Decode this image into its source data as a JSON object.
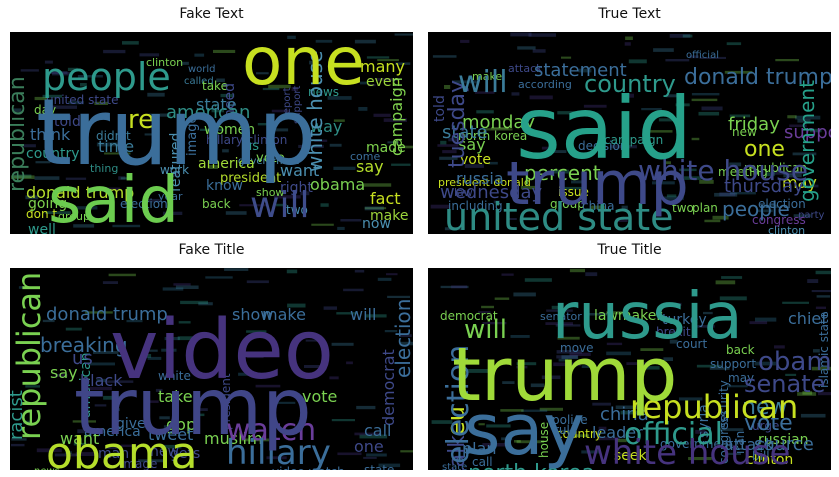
{
  "panels": [
    {
      "title": "Fake Text",
      "words": [
        {
          "text": "trump",
          "color": "#3b6e9a"
        },
        {
          "text": "said",
          "color": "#6ccc4f"
        },
        {
          "text": "one",
          "color": "#c7e020"
        },
        {
          "text": "people",
          "color": "#2e9a8c"
        },
        {
          "text": "will",
          "color": "#3f4d8c"
        },
        {
          "text": "republican",
          "color": "#3a7d5a"
        },
        {
          "text": "white house",
          "color": "#4b8fb0"
        },
        {
          "text": "donald trump",
          "color": "#b5de2b"
        },
        {
          "text": "campaign",
          "color": "#7fd34e"
        },
        {
          "text": "president",
          "color": "#b5de2b"
        },
        {
          "text": "hillary clinton",
          "color": "#3e4989"
        },
        {
          "text": "american",
          "color": "#2e8c84"
        },
        {
          "text": "state",
          "color": "#3b7c9a"
        },
        {
          "text": "women",
          "color": "#7ad151"
        },
        {
          "text": "america",
          "color": "#a0da39"
        },
        {
          "text": "many",
          "color": "#c7e020"
        },
        {
          "text": "even",
          "color": "#9cd53b"
        },
        {
          "text": "made",
          "color": "#7fd34e"
        },
        {
          "text": "now",
          "color": "#4b8fb0"
        },
        {
          "text": "fact",
          "color": "#c7e020"
        },
        {
          "text": "make",
          "color": "#9cd53b"
        },
        {
          "text": "obama",
          "color": "#7ad151"
        },
        {
          "text": "say",
          "color": "#b5de2b"
        },
        {
          "text": "want",
          "color": "#4b8fb0"
        },
        {
          "text": "right",
          "color": "#3e4989"
        },
        {
          "text": "know",
          "color": "#3b6e9a"
        },
        {
          "text": "image",
          "color": "#3b6e9a"
        },
        {
          "text": "featured",
          "color": "#4b8fb0"
        },
        {
          "text": "time",
          "color": "#3b7c9a"
        },
        {
          "text": "think",
          "color": "#3b6e9a"
        },
        {
          "text": "country",
          "color": "#2e9a8c"
        },
        {
          "text": "going",
          "color": "#7fd34e"
        },
        {
          "text": "don t",
          "color": "#c7e020"
        },
        {
          "text": "well",
          "color": "#2e9a8c"
        },
        {
          "text": "re",
          "color": "#c7e020"
        },
        {
          "text": "need",
          "color": "#3e4989"
        },
        {
          "text": "told",
          "color": "#3e4989"
        },
        {
          "text": "us",
          "color": "#2e9a8c"
        },
        {
          "text": "vote",
          "color": "#7ad151"
        },
        {
          "text": "way",
          "color": "#2e8c84"
        },
        {
          "text": "clinton",
          "color": "#7ad151"
        },
        {
          "text": "election",
          "color": "#3b6e9a"
        },
        {
          "text": "two",
          "color": "#4b8fb0"
        },
        {
          "text": "show",
          "color": "#7ad151"
        },
        {
          "text": "called",
          "color": "#3b7c9a"
        },
        {
          "text": "world",
          "color": "#3b6e9a"
        },
        {
          "text": "take",
          "color": "#7ad151"
        },
        {
          "text": "day",
          "color": "#7ad151"
        },
        {
          "text": "work",
          "color": "#4b8fb0"
        },
        {
          "text": "news",
          "color": "#2e9a8c"
        },
        {
          "text": "year",
          "color": "#3b6e9a"
        },
        {
          "text": "back",
          "color": "#7ad151"
        },
        {
          "text": "group",
          "color": "#7ad151"
        },
        {
          "text": "government",
          "color": "#4b8fb0"
        },
        {
          "text": "united state",
          "color": "#3e4989"
        },
        {
          "text": "come",
          "color": "#3b6e9a"
        },
        {
          "text": "thing",
          "color": "#2e8c84"
        },
        {
          "text": "didn t",
          "color": "#3b7c9a"
        },
        {
          "text": "support",
          "color": "#3e4989"
        },
        {
          "text": "report",
          "color": "#3e4989"
        }
      ]
    },
    {
      "title": "True Text",
      "words": [
        {
          "text": "said",
          "color": "#26a18a"
        },
        {
          "text": "trump",
          "color": "#3e4989"
        },
        {
          "text": "united state",
          "color": "#2e8c84"
        },
        {
          "text": "donald trump",
          "color": "#3b6e9a"
        },
        {
          "text": "will",
          "color": "#3b7c9a"
        },
        {
          "text": "country",
          "color": "#2e9a8c"
        },
        {
          "text": "white house",
          "color": "#3e4989"
        },
        {
          "text": "percent",
          "color": "#7ad151"
        },
        {
          "text": "government",
          "color": "#26a18a"
        },
        {
          "text": "tuesday",
          "color": "#3e4989"
        },
        {
          "text": "statement",
          "color": "#3b6e9a"
        },
        {
          "text": "one",
          "color": "#c7e020"
        },
        {
          "text": "people",
          "color": "#3b6e9a"
        },
        {
          "text": "wednesday",
          "color": "#3e4989"
        },
        {
          "text": "thursday",
          "color": "#3e4989"
        },
        {
          "text": "friday",
          "color": "#7ad151"
        },
        {
          "text": "monday",
          "color": "#7ad151"
        },
        {
          "text": "russia",
          "color": "#3b6e9a"
        },
        {
          "text": "state",
          "color": "#3b7c9a"
        },
        {
          "text": "support",
          "color": "#6a3d9a"
        },
        {
          "text": "say",
          "color": "#7ad151"
        },
        {
          "text": "vote",
          "color": "#c7e020"
        },
        {
          "text": "north korea",
          "color": "#7ad151"
        },
        {
          "text": "told",
          "color": "#3e4989"
        },
        {
          "text": "may",
          "color": "#c7e020"
        },
        {
          "text": "new",
          "color": "#7ad151"
        },
        {
          "text": "republican",
          "color": "#7ad151"
        },
        {
          "text": "election",
          "color": "#3b6e9a"
        },
        {
          "text": "law",
          "color": "#3e4989"
        },
        {
          "text": "meeting",
          "color": "#7ad151"
        },
        {
          "text": "issue",
          "color": "#c7e020"
        },
        {
          "text": "group",
          "color": "#7ad151"
        },
        {
          "text": "congress",
          "color": "#6a3d9a"
        },
        {
          "text": "clinton",
          "color": "#4b8fb0"
        },
        {
          "text": "including",
          "color": "#3b6e9a"
        },
        {
          "text": "china",
          "color": "#3b6e9a"
        },
        {
          "text": "make",
          "color": "#7ad151"
        },
        {
          "text": "according",
          "color": "#3b6e9a"
        },
        {
          "text": "attack",
          "color": "#3e4989"
        },
        {
          "text": "party",
          "color": "#3e4989"
        },
        {
          "text": "decision",
          "color": "#3b6e9a"
        },
        {
          "text": "president donald",
          "color": "#c7e020"
        },
        {
          "text": "campaign",
          "color": "#2e9a8c"
        },
        {
          "text": "official",
          "color": "#3b6e9a"
        },
        {
          "text": "two",
          "color": "#7ad151"
        },
        {
          "text": "plan",
          "color": "#7ad151"
        }
      ]
    },
    {
      "title": "Fake Title",
      "words": [
        {
          "text": "video",
          "color": "#46337e"
        },
        {
          "text": "trump",
          "color": "#404688"
        },
        {
          "text": "obama",
          "color": "#b5de2b"
        },
        {
          "text": "hillary",
          "color": "#3b6e9a"
        },
        {
          "text": "watch",
          "color": "#6a3d9a"
        },
        {
          "text": "republican",
          "color": "#7ad151"
        },
        {
          "text": "donald trump",
          "color": "#3b6e9a"
        },
        {
          "text": "show",
          "color": "#3b6e9a"
        },
        {
          "text": "make",
          "color": "#3b6e9a"
        },
        {
          "text": "will",
          "color": "#3b6e9a"
        },
        {
          "text": "election",
          "color": "#3b6e9a"
        },
        {
          "text": "democrat",
          "color": "#3e4989"
        },
        {
          "text": "racist",
          "color": "#2e9a8c"
        },
        {
          "text": "breaking",
          "color": "#3b6e9a"
        },
        {
          "text": "say",
          "color": "#7ad151"
        },
        {
          "text": "us",
          "color": "#3e4989"
        },
        {
          "text": "black",
          "color": "#3e4989"
        },
        {
          "text": "white",
          "color": "#3b6e9a"
        },
        {
          "text": "take",
          "color": "#7ad151"
        },
        {
          "text": "gop",
          "color": "#7ad151"
        },
        {
          "text": "vote",
          "color": "#7ad151"
        },
        {
          "text": "american",
          "color": "#2e9a8c"
        },
        {
          "text": "america",
          "color": "#3b6e9a"
        },
        {
          "text": "tweet",
          "color": "#3b6e9a"
        },
        {
          "text": "muslim",
          "color": "#7ad151"
        },
        {
          "text": "gets",
          "color": "#3e4989"
        },
        {
          "text": "new",
          "color": "#3e4989"
        },
        {
          "text": "call",
          "color": "#3b6e9a"
        },
        {
          "text": "one",
          "color": "#3e4989"
        },
        {
          "text": "give",
          "color": "#3b6e9a"
        },
        {
          "text": "want",
          "color": "#7ad151"
        },
        {
          "text": "man",
          "color": "#3e4989"
        },
        {
          "text": "image",
          "color": "#3e4989"
        },
        {
          "text": "president",
          "color": "#3e4989"
        },
        {
          "text": "video watch",
          "color": "#3b6e9a"
        },
        {
          "text": "state",
          "color": "#3b6e9a"
        },
        {
          "text": "news",
          "color": "#7ad151"
        },
        {
          "text": "fox",
          "color": "#3e4989"
        }
      ]
    },
    {
      "title": "True Title",
      "words": [
        {
          "text": "trump",
          "color": "#a0da39"
        },
        {
          "text": "say",
          "color": "#3b6e9a"
        },
        {
          "text": "russia",
          "color": "#2e9a8c"
        },
        {
          "text": "white house",
          "color": "#46337e"
        },
        {
          "text": "republican",
          "color": "#c7e020"
        },
        {
          "text": "obama",
          "color": "#3e4989"
        },
        {
          "text": "senate",
          "color": "#3e4989"
        },
        {
          "text": "official",
          "color": "#2e9a8c"
        },
        {
          "text": "election",
          "color": "#3b6e9a"
        },
        {
          "text": "north korea",
          "color": "#2e9a8c"
        },
        {
          "text": "will",
          "color": "#7ad151"
        },
        {
          "text": "new",
          "color": "#3b7c9a"
        },
        {
          "text": "vote",
          "color": "#3b6e9a"
        },
        {
          "text": "eu",
          "color": "#c7e020"
        },
        {
          "text": "china",
          "color": "#3b6e9a"
        },
        {
          "text": "leader",
          "color": "#3b6e9a"
        },
        {
          "text": "talk",
          "color": "#3e4989"
        },
        {
          "text": "attack",
          "color": "#3b6e9a"
        },
        {
          "text": "plan",
          "color": "#3b6e9a"
        },
        {
          "text": "source",
          "color": "#3b6e9a"
        },
        {
          "text": "clinton",
          "color": "#c7e020"
        },
        {
          "text": "russian",
          "color": "#7ad151"
        },
        {
          "text": "urge",
          "color": "#3e4989"
        },
        {
          "text": "bill",
          "color": "#3b6e9a"
        },
        {
          "text": "congress",
          "color": "#3b6e9a"
        },
        {
          "text": "seek",
          "color": "#c7e020"
        },
        {
          "text": "deal",
          "color": "#7ad151"
        },
        {
          "text": "president",
          "color": "#6a3d9a"
        },
        {
          "text": "lawmaker",
          "color": "#7ad151"
        },
        {
          "text": "democrat",
          "color": "#7ad151"
        },
        {
          "text": "turkey",
          "color": "#3b6e9a"
        },
        {
          "text": "chief",
          "color": "#3b6e9a"
        },
        {
          "text": "syria",
          "color": "#3b6e9a"
        },
        {
          "text": "iran",
          "color": "#3b6e9a"
        },
        {
          "text": "back",
          "color": "#7ad151"
        },
        {
          "text": "may",
          "color": "#3b6e9a"
        },
        {
          "text": "call",
          "color": "#3b6e9a"
        },
        {
          "text": "house",
          "color": "#7ad151"
        },
        {
          "text": "country",
          "color": "#c7e020"
        },
        {
          "text": "court",
          "color": "#3b6e9a"
        },
        {
          "text": "state",
          "color": "#3b6e9a"
        },
        {
          "text": "islamic state",
          "color": "#3b6e9a"
        },
        {
          "text": "brexit",
          "color": "#3e4989"
        },
        {
          "text": "senator",
          "color": "#3b6e9a"
        },
        {
          "text": "police",
          "color": "#3b6e9a"
        },
        {
          "text": "rule",
          "color": "#3b6e9a"
        },
        {
          "text": "government",
          "color": "#3b6e9a"
        },
        {
          "text": "security",
          "color": "#3b6e9a"
        },
        {
          "text": "support",
          "color": "#3b6e9a"
        },
        {
          "text": "move",
          "color": "#3b6e9a"
        }
      ]
    }
  ]
}
